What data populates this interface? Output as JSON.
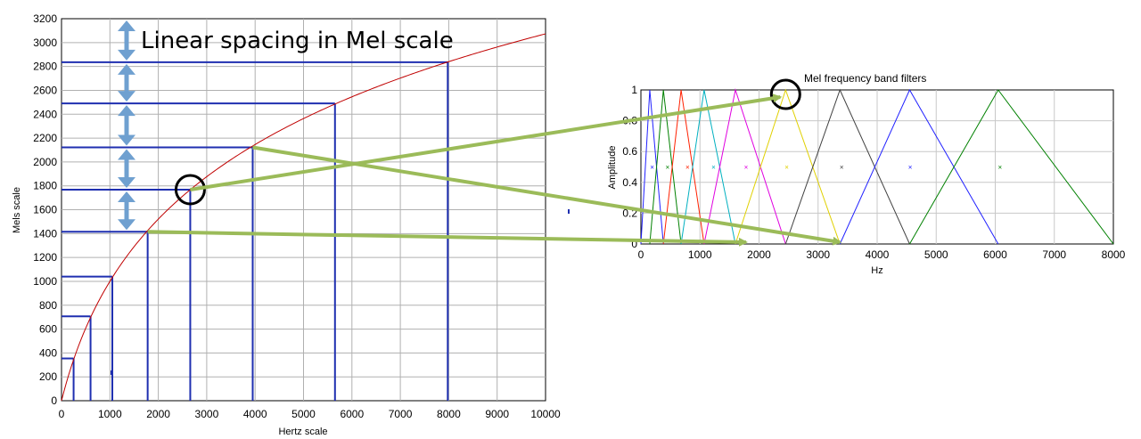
{
  "chart_data": [
    {
      "type": "line",
      "subtype": "staircase-mapping",
      "xlabel": "Hertz scale",
      "ylabel": "Mels scale",
      "xlim": [
        0,
        10000
      ],
      "ylim": [
        0,
        3200
      ],
      "x_ticks": [
        "0",
        "1000",
        "2000",
        "3000",
        "4000",
        "5000",
        "6000",
        "7000",
        "8000",
        "9000",
        "10000"
      ],
      "y_ticks": [
        "0",
        "200",
        "400",
        "600",
        "800",
        "1000",
        "1200",
        "1400",
        "1600",
        "1800",
        "2000",
        "2200",
        "2400",
        "2600",
        "2800",
        "3000",
        "3200"
      ],
      "grid": true,
      "curve": {
        "name": "mel(f)",
        "color": "#c00000"
      },
      "mapping_points": [
        {
          "hz": 250,
          "mel": 354
        },
        {
          "hz": 600,
          "mel": 707
        },
        {
          "hz": 1050,
          "mel": 1040
        },
        {
          "hz": 1780,
          "mel": 1415
        },
        {
          "hz": 2660,
          "mel": 1768
        },
        {
          "hz": 3950,
          "mel": 2122
        },
        {
          "hz": 5650,
          "mel": 2490
        },
        {
          "hz": 7980,
          "mel": 2835
        }
      ],
      "step_color": "#1f2fb0",
      "annotation": "Linear spacing in Mel scale",
      "arrow_color": "#6fa0d0",
      "circled_point": {
        "hz": 2660,
        "mel": 1768
      }
    },
    {
      "type": "line",
      "subtype": "triangular-filterbank",
      "title": "Mel frequency band filters",
      "xlabel": "Hz",
      "ylabel": "Amplitude",
      "xlim": [
        0,
        8000
      ],
      "ylim": [
        0,
        1
      ],
      "x_ticks": [
        "0",
        "1000",
        "2000",
        "3000",
        "4000",
        "5000",
        "6000",
        "7000",
        "8000"
      ],
      "y_ticks": [
        "0",
        "0.2",
        "0.4",
        "0.6",
        "0.8",
        "1"
      ],
      "grid": true,
      "filters": [
        {
          "start": 0,
          "peak": 150,
          "end": 380,
          "color": "#2020ff"
        },
        {
          "start": 150,
          "peak": 380,
          "end": 680,
          "color": "#008000"
        },
        {
          "start": 380,
          "peak": 680,
          "end": 1070,
          "color": "#ff2000"
        },
        {
          "start": 680,
          "peak": 1070,
          "end": 1600,
          "color": "#00b0c0"
        },
        {
          "start": 1070,
          "peak": 1600,
          "end": 2450,
          "color": "#e000e0"
        },
        {
          "start": 1600,
          "peak": 2450,
          "end": 3370,
          "color": "#e0d000"
        },
        {
          "start": 2450,
          "peak": 3370,
          "end": 4550,
          "color": "#404040"
        },
        {
          "start": 3370,
          "peak": 4550,
          "end": 6050,
          "color": "#2020ff"
        },
        {
          "start": 4550,
          "peak": 6050,
          "end": 8000,
          "color": "#008000"
        }
      ],
      "centroid_markers": [
        {
          "hz": 190,
          "value": 0.5,
          "color": "#2020ff"
        },
        {
          "hz": 450,
          "value": 0.5,
          "color": "#008000"
        },
        {
          "hz": 790,
          "value": 0.5,
          "color": "#ff2000"
        },
        {
          "hz": 1230,
          "value": 0.5,
          "color": "#00b0c0"
        },
        {
          "hz": 1780,
          "value": 0.5,
          "color": "#e000e0"
        },
        {
          "hz": 2470,
          "value": 0.5,
          "color": "#e0d000"
        },
        {
          "hz": 3400,
          "value": 0.5,
          "color": "#404040"
        },
        {
          "hz": 4560,
          "value": 0.5,
          "color": "#2020ff"
        },
        {
          "hz": 6080,
          "value": 0.5,
          "color": "#008000"
        }
      ],
      "circled_point": {
        "hz": 2450,
        "value": 1
      }
    }
  ],
  "connector_color": "#9bbb59"
}
